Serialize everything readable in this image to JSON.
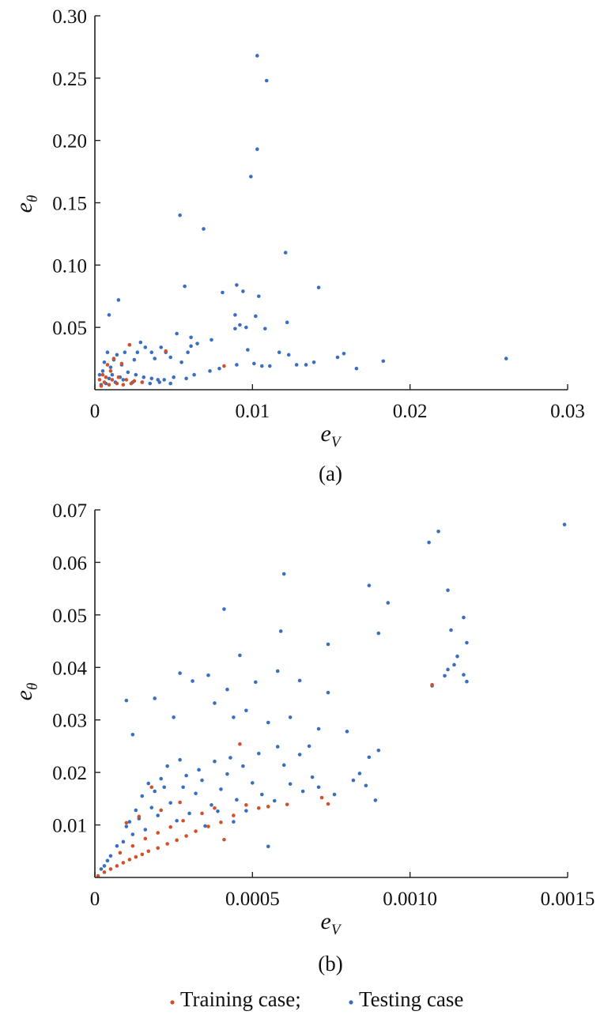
{
  "colors": {
    "training": "#d2502a",
    "testing": "#3a6fc0"
  },
  "legend": {
    "entries": [
      {
        "label": "Training case;",
        "color": "#d2502a"
      },
      {
        "label": "Testing case",
        "color": "#3a6fc0"
      }
    ],
    "placement": "bottom-center"
  },
  "chart_data": [
    {
      "type": "scatter",
      "panel_label": "(a)",
      "xlabel": "e",
      "xlabel_sub": "V",
      "ylabel": "e",
      "ylabel_sub": "θ",
      "xlim": [
        0,
        0.03
      ],
      "ylim": [
        0,
        0.3
      ],
      "x_ticks": [
        "0",
        "0.01",
        "0.02",
        "0.03"
      ],
      "y_ticks": [
        "0.05",
        "0.10",
        "0.15",
        "0.20",
        "0.25",
        "0.30"
      ],
      "grid": false,
      "series": [
        {
          "name": "Testing case",
          "points": [
            [
              0.0103,
              0.268
            ],
            [
              0.0109,
              0.248
            ],
            [
              0.0103,
              0.193
            ],
            [
              0.0099,
              0.171
            ],
            [
              0.0054,
              0.14
            ],
            [
              0.0069,
              0.129
            ],
            [
              0.0121,
              0.11
            ],
            [
              0.0057,
              0.083
            ],
            [
              0.0142,
              0.082
            ],
            [
              0.009,
              0.084
            ],
            [
              0.0094,
              0.079
            ],
            [
              0.0081,
              0.078
            ],
            [
              0.0104,
              0.075
            ],
            [
              0.0015,
              0.072
            ],
            [
              0.0009,
              0.06
            ],
            [
              0.0089,
              0.06
            ],
            [
              0.0102,
              0.059
            ],
            [
              0.0122,
              0.054
            ],
            [
              0.0092,
              0.052
            ],
            [
              0.0096,
              0.05
            ],
            [
              0.0089,
              0.049
            ],
            [
              0.0108,
              0.049
            ],
            [
              0.0061,
              0.042
            ],
            [
              0.0052,
              0.045
            ],
            [
              0.0074,
              0.04
            ],
            [
              0.0065,
              0.037
            ],
            [
              0.0061,
              0.035
            ],
            [
              0.0097,
              0.032
            ],
            [
              0.0117,
              0.03
            ],
            [
              0.0123,
              0.028
            ],
            [
              0.0158,
              0.029
            ],
            [
              0.0154,
              0.026
            ],
            [
              0.0261,
              0.025
            ],
            [
              0.0183,
              0.023
            ],
            [
              0.0139,
              0.022
            ],
            [
              0.0134,
              0.02
            ],
            [
              0.0128,
              0.02
            ],
            [
              0.0111,
              0.019
            ],
            [
              0.0106,
              0.019
            ],
            [
              0.0101,
              0.021
            ],
            [
              0.009,
              0.02
            ],
            [
              0.0166,
              0.017
            ],
            [
              0.0059,
              0.03
            ],
            [
              0.0055,
              0.022
            ],
            [
              0.0048,
              0.026
            ],
            [
              0.0045,
              0.03
            ],
            [
              0.0042,
              0.034
            ],
            [
              0.0038,
              0.025
            ],
            [
              0.0036,
              0.03
            ],
            [
              0.0032,
              0.034
            ],
            [
              0.0029,
              0.038
            ],
            [
              0.0027,
              0.03
            ],
            [
              0.0025,
              0.024
            ],
            [
              0.0022,
              0.036
            ],
            [
              0.0019,
              0.03
            ],
            [
              0.0017,
              0.02
            ],
            [
              0.0014,
              0.028
            ],
            [
              0.0012,
              0.024
            ],
            [
              0.001,
              0.018
            ],
            [
              0.0008,
              0.03
            ],
            [
              0.0006,
              0.022
            ],
            [
              0.0005,
              0.015
            ],
            [
              0.0003,
              0.012
            ],
            [
              0.0011,
              0.012
            ],
            [
              0.0016,
              0.01
            ],
            [
              0.0021,
              0.014
            ],
            [
              0.0026,
              0.012
            ],
            [
              0.0031,
              0.01
            ],
            [
              0.0036,
              0.009
            ],
            [
              0.004,
              0.008
            ],
            [
              0.0044,
              0.008
            ],
            [
              0.005,
              0.01
            ],
            [
              0.0058,
              0.009
            ],
            [
              0.0063,
              0.012
            ],
            [
              0.0073,
              0.015
            ],
            [
              0.0079,
              0.017
            ],
            [
              0.0018,
              0.008
            ],
            [
              0.0024,
              0.006
            ],
            [
              0.003,
              0.006
            ],
            [
              0.0035,
              0.005
            ],
            [
              0.0041,
              0.006
            ],
            [
              0.0048,
              0.005
            ],
            [
              0.0007,
              0.005
            ],
            [
              0.0013,
              0.006
            ],
            [
              0.0004,
              0.004
            ],
            [
              0.0009,
              0.009
            ]
          ]
        },
        {
          "name": "Training case",
          "points": [
            [
              0.0022,
              0.036
            ],
            [
              0.0045,
              0.031
            ],
            [
              0.0017,
              0.021
            ],
            [
              0.0082,
              0.019
            ],
            [
              0.0012,
              0.025
            ],
            [
              0.0008,
              0.02
            ],
            [
              0.0005,
              0.012
            ],
            [
              0.001,
              0.015
            ],
            [
              0.0015,
              0.01
            ],
            [
              0.002,
              0.008
            ],
            [
              0.0025,
              0.007
            ],
            [
              0.003,
              0.006
            ],
            [
              0.0006,
              0.006
            ],
            [
              0.0011,
              0.008
            ],
            [
              0.0004,
              0.003
            ],
            [
              0.0009,
              0.004
            ],
            [
              0.0014,
              0.005
            ],
            [
              0.0003,
              0.008
            ],
            [
              0.0007,
              0.01
            ],
            [
              0.0018,
              0.004
            ],
            [
              0.0023,
              0.005
            ]
          ]
        }
      ]
    },
    {
      "type": "scatter",
      "panel_label": "(b)",
      "xlabel": "e",
      "xlabel_sub": "V",
      "ylabel": "e",
      "ylabel_sub": "θ",
      "xlim": [
        0,
        0.0015
      ],
      "ylim": [
        0,
        0.07
      ],
      "x_ticks": [
        "0",
        "0.0005",
        "0.0010",
        "0.0015"
      ],
      "y_ticks": [
        "0.01",
        "0.02",
        "0.03",
        "0.04",
        "0.05",
        "0.06",
        "0.07"
      ],
      "grid": false,
      "series": [
        {
          "name": "Testing case",
          "points": [
            [
              0.00149,
              0.0672
            ],
            [
              0.00109,
              0.0659
            ],
            [
              0.00106,
              0.0638
            ],
            [
              0.00112,
              0.0547
            ],
            [
              0.0006,
              0.0578
            ],
            [
              0.00087,
              0.0556
            ],
            [
              0.00093,
              0.0523
            ],
            [
              0.00041,
              0.0511
            ],
            [
              0.00117,
              0.0495
            ],
            [
              0.00113,
              0.0471
            ],
            [
              0.0009,
              0.0465
            ],
            [
              0.00059,
              0.0469
            ],
            [
              0.00118,
              0.0447
            ],
            [
              0.00074,
              0.0444
            ],
            [
              0.00046,
              0.0423
            ],
            [
              0.00115,
              0.0421
            ],
            [
              0.00114,
              0.0405
            ],
            [
              0.00112,
              0.0396
            ],
            [
              0.00117,
              0.0386
            ],
            [
              0.00027,
              0.0389
            ],
            [
              0.00036,
              0.0385
            ],
            [
              0.00111,
              0.0384
            ],
            [
              0.00118,
              0.0373
            ],
            [
              0.00051,
              0.0372
            ],
            [
              0.00058,
              0.0393
            ],
            [
              0.00065,
              0.0375
            ],
            [
              0.00031,
              0.0374
            ],
            [
              0.00107,
              0.0365
            ],
            [
              0.0001,
              0.0337
            ],
            [
              0.00074,
              0.0352
            ],
            [
              0.00019,
              0.0341
            ],
            [
              0.00042,
              0.0358
            ],
            [
              0.00038,
              0.0332
            ],
            [
              0.00048,
              0.0318
            ],
            [
              0.00055,
              0.0295
            ],
            [
              0.00044,
              0.0305
            ],
            [
              0.00062,
              0.0305
            ],
            [
              0.0008,
              0.0278
            ],
            [
              0.00025,
              0.0305
            ],
            [
              0.00012,
              0.0272
            ],
            [
              0.0009,
              0.0242
            ],
            [
              0.00071,
              0.0283
            ],
            [
              0.00068,
              0.025
            ],
            [
              0.00087,
              0.0229
            ],
            [
              0.00065,
              0.0234
            ],
            [
              0.00084,
              0.0198
            ],
            [
              0.00082,
              0.0185
            ],
            [
              0.00086,
              0.0175
            ],
            [
              0.00071,
              0.0172
            ],
            [
              0.00076,
              0.0158
            ],
            [
              0.00089,
              0.0147
            ],
            [
              0.00055,
              0.0059
            ],
            [
              0.0005,
              0.018
            ],
            [
              0.00048,
              0.0127
            ],
            [
              0.00045,
              0.0148
            ],
            [
              0.00042,
              0.0197
            ],
            [
              0.0004,
              0.0168
            ],
            [
              0.00037,
              0.0138
            ],
            [
              0.00034,
              0.0185
            ],
            [
              0.00032,
              0.016
            ],
            [
              0.0003,
              0.0122
            ],
            [
              0.00028,
              0.0172
            ],
            [
              0.00026,
              0.0108
            ],
            [
              0.00024,
              0.0142
            ],
            [
              0.00022,
              0.0172
            ],
            [
              0.0002,
              0.0118
            ],
            [
              0.00018,
              0.0133
            ],
            [
              0.00016,
              0.0091
            ],
            [
              0.00014,
              0.0112
            ],
            [
              0.00012,
              0.0082
            ],
            [
              0.0001,
              0.0097
            ],
            [
              9e-05,
              0.0068
            ],
            [
              7e-05,
              0.006
            ],
            [
              5e-05,
              0.0041
            ],
            [
              4e-05,
              0.0032
            ],
            [
              2e-05,
              0.0016
            ],
            [
              3e-05,
              0.0022
            ],
            [
              0.00035,
              0.0098
            ],
            [
              0.00039,
              0.0126
            ],
            [
              0.00044,
              0.0106
            ],
            [
              0.00053,
              0.0158
            ],
            [
              0.00057,
              0.0146
            ],
            [
              0.00062,
              0.0178
            ],
            [
              0.00066,
              0.0164
            ],
            [
              0.00069,
              0.0191
            ],
            [
              0.0006,
              0.0214
            ],
            [
              0.00058,
              0.0249
            ],
            [
              0.00052,
              0.0236
            ],
            [
              0.00047,
              0.0212
            ],
            [
              0.00043,
              0.0228
            ],
            [
              0.00038,
              0.0221
            ],
            [
              0.00033,
              0.0205
            ],
            [
              0.00029,
              0.0194
            ],
            [
              0.00027,
              0.0224
            ],
            [
              0.00023,
              0.0212
            ],
            [
              0.00021,
              0.0188
            ],
            [
              0.00019,
              0.0164
            ],
            [
              0.00017,
              0.0179
            ],
            [
              0.00015,
              0.0155
            ],
            [
              0.00013,
              0.0128
            ],
            [
              0.00011,
              0.0106
            ]
          ]
        },
        {
          "name": "Training case",
          "points": [
            [
              0.00107,
              0.0367
            ],
            [
              0.00046,
              0.0254
            ],
            [
              0.00048,
              0.0138
            ],
            [
              0.00044,
              0.0118
            ],
            [
              0.0004,
              0.0105
            ],
            [
              0.00036,
              0.0097
            ],
            [
              0.00032,
              0.0088
            ],
            [
              0.00029,
              0.0079
            ],
            [
              0.00026,
              0.0071
            ],
            [
              0.00023,
              0.0064
            ],
            [
              0.0002,
              0.0056
            ],
            [
              0.00017,
              0.005
            ],
            [
              0.00015,
              0.0044
            ],
            [
              0.00013,
              0.0039
            ],
            [
              0.00011,
              0.0034
            ],
            [
              9e-05,
              0.0028
            ],
            [
              7e-05,
              0.0022
            ],
            [
              5e-05,
              0.0016
            ],
            [
              3e-05,
              0.001
            ],
            [
              1e-05,
              0.0003
            ],
            [
              0.00038,
              0.0132
            ],
            [
              0.00034,
              0.0122
            ],
            [
              0.00028,
              0.0108
            ],
            [
              0.00024,
              0.0096
            ],
            [
              0.0002,
              0.0085
            ],
            [
              0.00016,
              0.0074
            ],
            [
              0.00012,
              0.006
            ],
            [
              8e-05,
              0.0047
            ],
            [
              0.0001,
              0.0104
            ],
            [
              0.00014,
              0.0116
            ],
            [
              0.00021,
              0.0128
            ],
            [
              0.00041,
              0.0072
            ],
            [
              0.00052,
              0.0132
            ],
            [
              0.00055,
              0.0135
            ],
            [
              0.00061,
              0.0139
            ],
            [
              0.00072,
              0.0152
            ],
            [
              0.00074,
              0.014
            ],
            [
              0.00018,
              0.0172
            ],
            [
              0.00027,
              0.0143
            ]
          ]
        }
      ]
    }
  ]
}
